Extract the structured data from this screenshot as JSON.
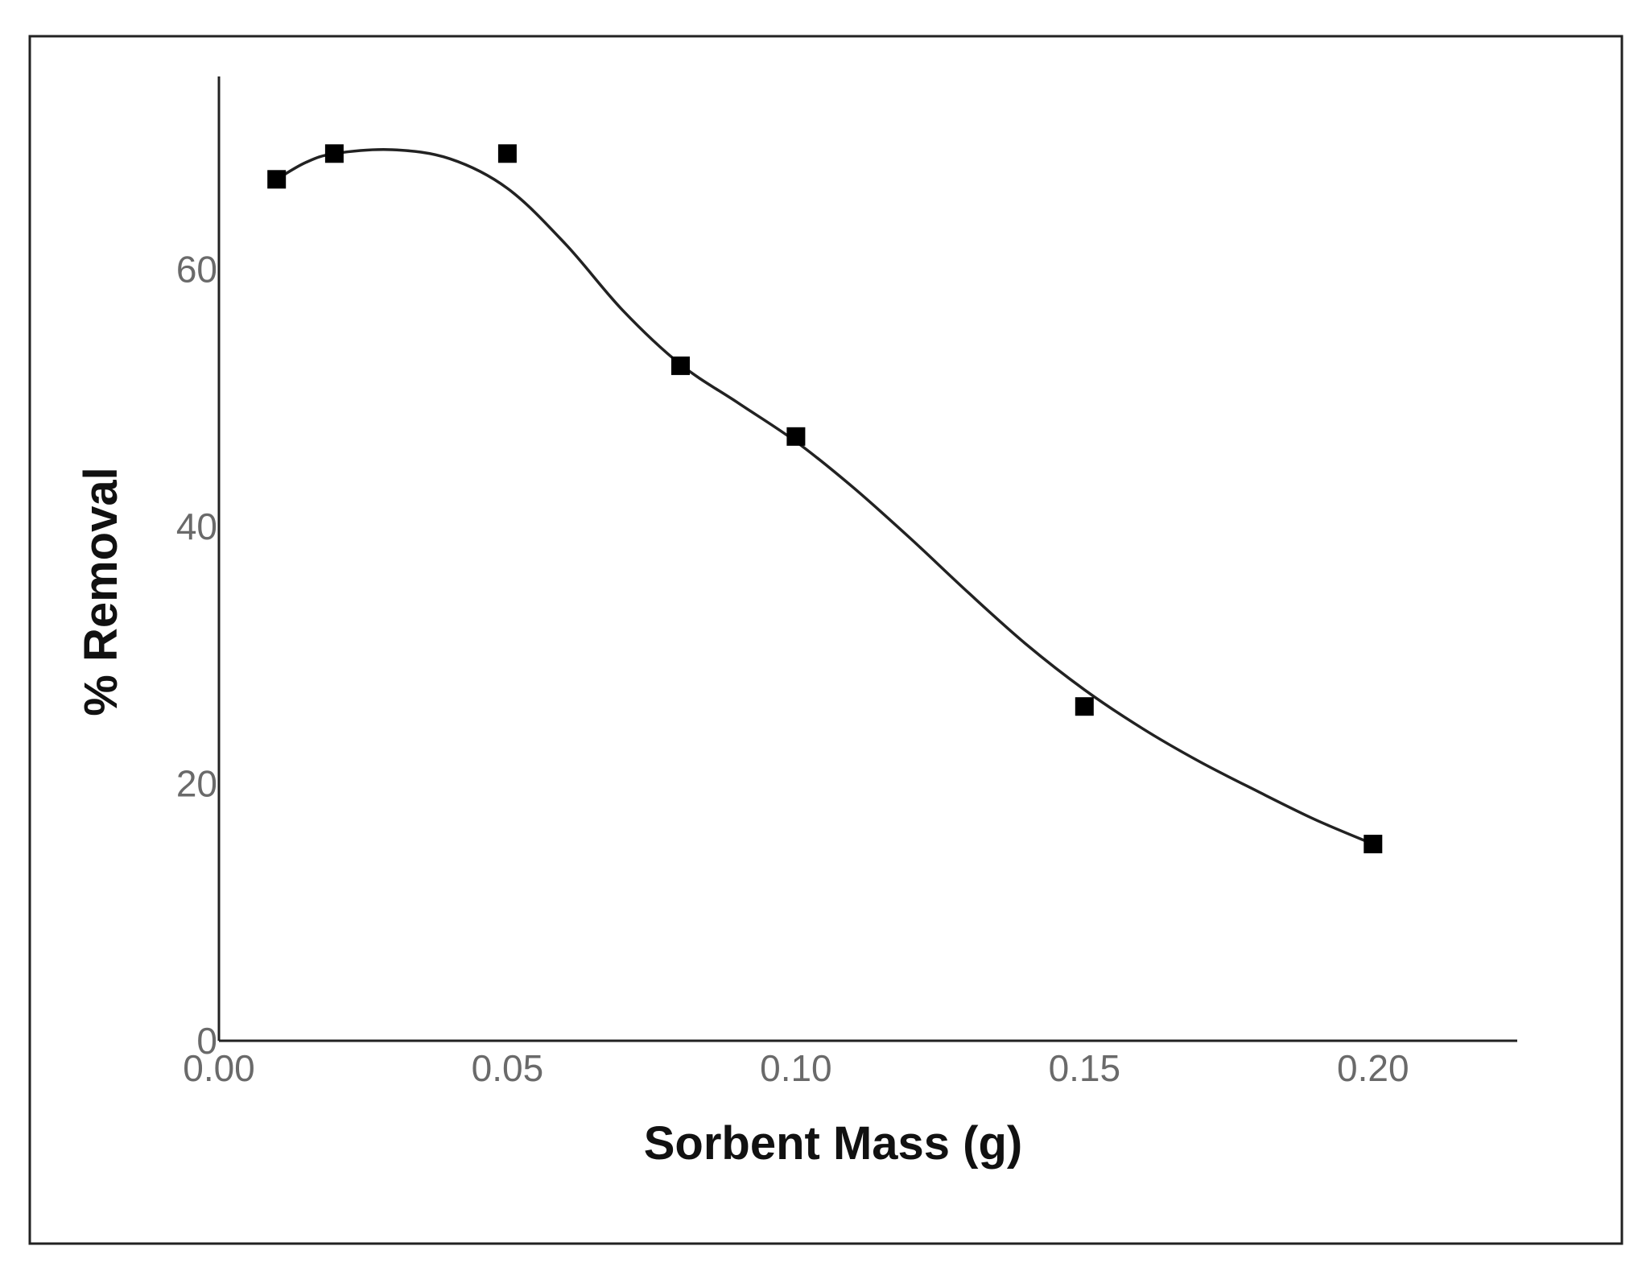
{
  "chart_data": {
    "type": "scatter",
    "title": "",
    "xlabel": "Sorbent Mass (g)",
    "ylabel": "% Removal",
    "xlim": [
      0.0,
      0.225
    ],
    "ylim": [
      0,
      75
    ],
    "x_ticks": [
      {
        "value": 0.0,
        "label": "0.00"
      },
      {
        "value": 0.05,
        "label": "0.05"
      },
      {
        "value": 0.1,
        "label": "0.10"
      },
      {
        "value": 0.15,
        "label": "0.15"
      },
      {
        "value": 0.2,
        "label": "0.20"
      }
    ],
    "y_ticks": [
      {
        "value": 0,
        "label": "0"
      },
      {
        "value": 20,
        "label": "20"
      },
      {
        "value": 40,
        "label": "40"
      },
      {
        "value": 60,
        "label": "60"
      }
    ],
    "grid": false,
    "legend": "none",
    "marker": "square",
    "color": "#000000",
    "series": [
      {
        "points": [
          {
            "x": 0.01,
            "y": 67.0
          },
          {
            "x": 0.02,
            "y": 69.0
          },
          {
            "x": 0.05,
            "y": 69.0
          },
          {
            "x": 0.08,
            "y": 52.5
          },
          {
            "x": 0.1,
            "y": 47.0
          },
          {
            "x": 0.15,
            "y": 26.0
          },
          {
            "x": 0.2,
            "y": 15.3
          }
        ],
        "fit_curve": [
          {
            "x": 0.01,
            "y": 67.0
          },
          {
            "x": 0.015,
            "y": 68.3
          },
          {
            "x": 0.02,
            "y": 69.0
          },
          {
            "x": 0.03,
            "y": 69.3
          },
          {
            "x": 0.04,
            "y": 68.6
          },
          {
            "x": 0.05,
            "y": 66.3
          },
          {
            "x": 0.06,
            "y": 62.0
          },
          {
            "x": 0.07,
            "y": 56.8
          },
          {
            "x": 0.08,
            "y": 52.6
          },
          {
            "x": 0.09,
            "y": 49.6
          },
          {
            "x": 0.1,
            "y": 46.6
          },
          {
            "x": 0.11,
            "y": 43.0
          },
          {
            "x": 0.12,
            "y": 39.0
          },
          {
            "x": 0.13,
            "y": 34.8
          },
          {
            "x": 0.14,
            "y": 30.8
          },
          {
            "x": 0.15,
            "y": 27.3
          },
          {
            "x": 0.16,
            "y": 24.3
          },
          {
            "x": 0.17,
            "y": 21.7
          },
          {
            "x": 0.18,
            "y": 19.4
          },
          {
            "x": 0.19,
            "y": 17.2
          },
          {
            "x": 0.2,
            "y": 15.3
          }
        ]
      }
    ]
  }
}
